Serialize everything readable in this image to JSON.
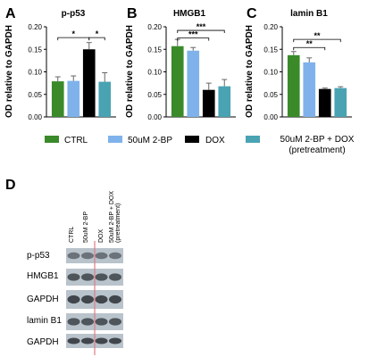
{
  "colors": {
    "CTRL": "#3a8a2a",
    "2BP": "#7fb2ea",
    "DOX": "#000000",
    "COMBO": "#4aa3b2",
    "error": "#666666",
    "divider": "#e07b85"
  },
  "chart_data": [
    {
      "type": "bar",
      "panel": "A",
      "title": "p-p53",
      "ylabel": "OD relative to GAPDH",
      "ylim": [
        0,
        0.2
      ],
      "yticks": [
        "0.00",
        "0.05",
        "0.10",
        "0.15",
        "0.20"
      ],
      "categories": [
        "CTRL",
        "50uM 2-BP",
        "DOX",
        "50uM 2-BP + DOX (pretreatment)"
      ],
      "values": [
        0.079,
        0.08,
        0.15,
        0.078
      ],
      "errors": [
        0.01,
        0.011,
        0.015,
        0.02
      ],
      "significance": [
        {
          "from": 0,
          "to": 2,
          "label": "*",
          "level": 0.176
        },
        {
          "from": 2,
          "to": 3,
          "label": "*",
          "level": 0.176
        }
      ]
    },
    {
      "type": "bar",
      "panel": "B",
      "title": "HMGB1",
      "ylabel": "OD relative to GAPDH",
      "ylim": [
        0,
        0.2
      ],
      "yticks": [
        "0.00",
        "0.05",
        "0.10",
        "0.15",
        "0.20"
      ],
      "categories": [
        "CTRL",
        "50uM 2-BP",
        "DOX",
        "50uM 2-BP + DOX (pretreatment)"
      ],
      "values": [
        0.157,
        0.147,
        0.06,
        0.068
      ],
      "errors": [
        0.015,
        0.007,
        0.015,
        0.015
      ],
      "significance": [
        {
          "from": 0,
          "to": 3,
          "label": "***",
          "level": 0.192
        },
        {
          "from": 0,
          "to": 2,
          "label": "***",
          "level": 0.175
        }
      ]
    },
    {
      "type": "bar",
      "panel": "C",
      "title": "lamin B1",
      "ylabel": "OD relative to GAPDH",
      "ylim": [
        0,
        0.2
      ],
      "yticks": [
        "0.00",
        "0.05",
        "0.10",
        "0.15",
        "0.20"
      ],
      "categories": [
        "CTRL",
        "50uM 2-BP",
        "DOX",
        "50uM 2-BP + DOX (pretreatment)"
      ],
      "values": [
        0.137,
        0.121,
        0.062,
        0.064
      ],
      "errors": [
        0.008,
        0.01,
        0.002,
        0.003
      ],
      "significance": [
        {
          "from": 0,
          "to": 3,
          "label": "**",
          "level": 0.172
        },
        {
          "from": 0,
          "to": 2,
          "label": "**",
          "level": 0.154
        }
      ]
    }
  ],
  "legend": [
    {
      "label": "CTRL",
      "color": "#3a8a2a"
    },
    {
      "label": "50uM 2-BP",
      "color": "#7fb2ea"
    },
    {
      "label": "DOX",
      "color": "#000000"
    },
    {
      "label": "50uM 2-BP + DOX",
      "label2": "(pretreatment)",
      "color": "#4aa3b2"
    }
  ],
  "blot": {
    "panel": "D",
    "lanes": [
      "CTRL",
      "50uM 2-BP",
      "DOX",
      "50uM 2-BP + DOX",
      "(pretreatment)"
    ],
    "rows": [
      "p-p53",
      "HMGB1",
      "GAPDH",
      "lamin B1",
      "GAPDH"
    ]
  }
}
